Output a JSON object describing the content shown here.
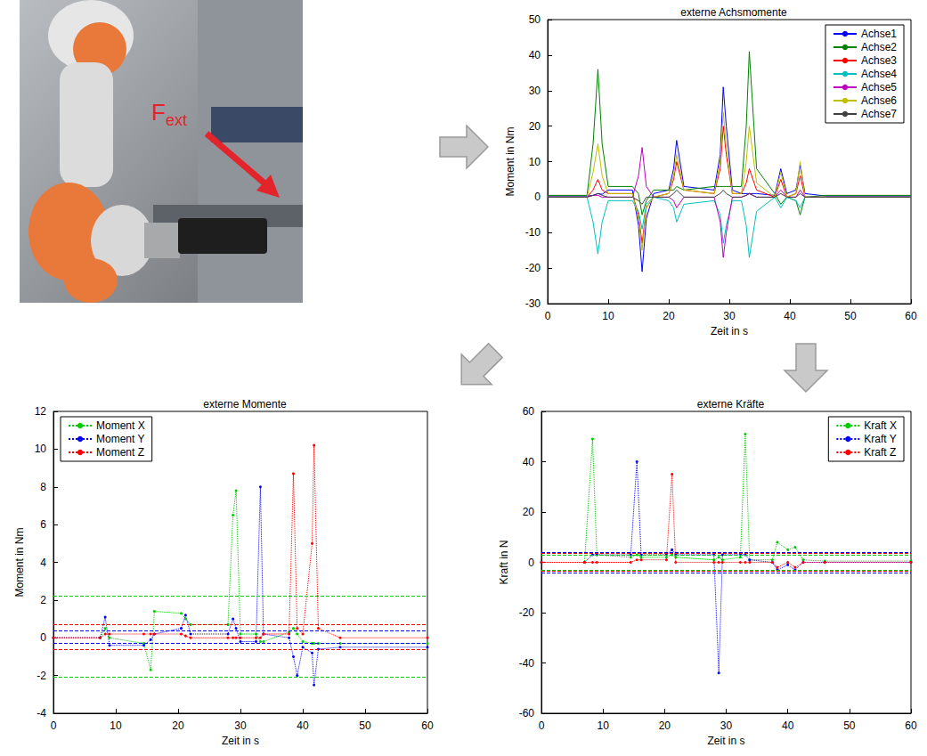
{
  "photo_label": {
    "text": "F",
    "subscript": "ext"
  },
  "chart_data": [
    {
      "type": "line",
      "title": "externe Achsmomente",
      "x_label": "Zeit in s",
      "y_label": "Moment in Nm",
      "xlim": [
        0,
        60
      ],
      "xticks": [
        0,
        10,
        20,
        30,
        40,
        50,
        60
      ],
      "ylim": [
        -30,
        50
      ],
      "yticks": [
        -30,
        -20,
        -10,
        0,
        10,
        20,
        30,
        40,
        50
      ],
      "grid": false,
      "legend": "upper right",
      "x": [
        0,
        6.5,
        7.5,
        8.3,
        9,
        10,
        14,
        15,
        15.6,
        16.3,
        17.5,
        20,
        20.8,
        21.3,
        22.5,
        27.5,
        28.5,
        29,
        29.5,
        30.5,
        32,
        32.8,
        33.3,
        34.5,
        37.5,
        38.5,
        39.5,
        41,
        41.7,
        42.5,
        46,
        60
      ],
      "series": [
        {
          "name": "Achse1",
          "color": "#0000ff",
          "line_style": "solid",
          "marker": "none",
          "values": [
            0.3,
            0.3,
            0.5,
            1,
            0.8,
            2,
            2,
            -8,
            -21,
            -6,
            1,
            2,
            8,
            16,
            3,
            2,
            12,
            31,
            20,
            2,
            1,
            1,
            1,
            1,
            0.5,
            8,
            1,
            2,
            9,
            1,
            0.3,
            0.3
          ]
        },
        {
          "name": "Achse2",
          "color": "#008000",
          "line_style": "solid",
          "marker": "none",
          "values": [
            0.5,
            0.5,
            15,
            36,
            15,
            3,
            3,
            1,
            -5,
            -1,
            2,
            2,
            2,
            3,
            2,
            3,
            3,
            3,
            3,
            3,
            3,
            20,
            41,
            8,
            1,
            -2,
            0,
            -1,
            -5,
            0,
            0.5,
            0.5
          ]
        },
        {
          "name": "Achse3",
          "color": "#ff0000",
          "line_style": "solid",
          "marker": "none",
          "values": [
            0,
            0,
            2,
            5,
            2,
            1,
            1,
            -5,
            -13,
            -3,
            0,
            1,
            5,
            10,
            2,
            1,
            8,
            20,
            12,
            1,
            1,
            4,
            8,
            2,
            0,
            5,
            0,
            1,
            6,
            0,
            0,
            0
          ]
        },
        {
          "name": "Achse4",
          "color": "#00bfbf",
          "line_style": "solid",
          "marker": "none",
          "values": [
            0,
            0,
            -7,
            -16,
            -7,
            -1,
            -1,
            -4,
            -9,
            -2,
            0,
            -1,
            -3,
            -7,
            -2,
            -1,
            -5,
            -13,
            -8,
            -1,
            -1,
            -8,
            -17,
            -4,
            0,
            -3,
            0,
            -1,
            -3,
            0,
            0,
            0
          ]
        },
        {
          "name": "Achse5",
          "color": "#bf00bf",
          "line_style": "solid",
          "marker": "none",
          "values": [
            0,
            0,
            0.5,
            0.5,
            0,
            0,
            0,
            6,
            14,
            3,
            0,
            0,
            -1,
            -3,
            0,
            0,
            -7,
            -17,
            -10,
            0,
            0,
            0.5,
            1,
            0,
            0,
            2,
            0,
            0,
            2,
            0,
            0,
            0
          ]
        },
        {
          "name": "Achse6",
          "color": "#bfbf00",
          "line_style": "solid",
          "marker": "none",
          "values": [
            0,
            0,
            7,
            15,
            6,
            1,
            1,
            -6,
            -15,
            -3,
            0,
            1,
            6,
            12,
            2,
            1,
            10,
            24,
            14,
            1,
            1,
            10,
            20,
            4,
            0,
            7,
            0,
            1,
            10,
            0,
            0,
            0
          ]
        },
        {
          "name": "Achse7",
          "color": "#404040",
          "line_style": "solid",
          "marker": "none",
          "values": [
            0,
            0,
            0.5,
            1,
            0.5,
            0,
            0,
            -1,
            -2,
            0,
            0,
            0,
            1,
            2,
            0,
            0,
            1,
            2,
            1,
            0,
            0,
            0.5,
            1,
            0,
            0,
            1,
            0,
            0,
            1,
            0,
            0,
            0
          ]
        }
      ]
    },
    {
      "type": "line",
      "title": "externe Momente",
      "x_label": "Zeit in s",
      "y_label": "Moment in Nm",
      "xlim": [
        0,
        60
      ],
      "xticks": [
        0,
        10,
        20,
        30,
        40,
        50,
        60
      ],
      "ylim": [
        -4,
        12
      ],
      "yticks": [
        -4,
        -2,
        0,
        2,
        4,
        6,
        8,
        10,
        12
      ],
      "grid": false,
      "legend": "upper left",
      "x": [
        0,
        7.5,
        8.3,
        9,
        14.5,
        15.6,
        16.2,
        20.5,
        21.2,
        22,
        28,
        28.8,
        29.3,
        30,
        32.5,
        33.2,
        33.7,
        37.8,
        38.5,
        39.1,
        40,
        41.5,
        41.8,
        42.5,
        46,
        60
      ],
      "series": [
        {
          "name": "Moment X",
          "color": "#00cc00",
          "line_style": "dotted",
          "marker": "dot",
          "thresholds": [
            2.2,
            -2.1
          ],
          "values": [
            0,
            0,
            0.5,
            0,
            -0.3,
            -1.7,
            1.4,
            1.3,
            1.0,
            0.7,
            0.7,
            6.5,
            7.8,
            0.2,
            0.2,
            -0.2,
            -0.2,
            0.3,
            0.5,
            0.2,
            -0.2,
            -0.3,
            -0.3,
            -0.3,
            -0.3,
            -0.3
          ]
        },
        {
          "name": "Moment Y",
          "color": "#0000ff",
          "line_style": "dotted",
          "marker": "dot",
          "thresholds": [
            0.4,
            -0.3
          ],
          "values": [
            0,
            0,
            1.1,
            -0.4,
            -0.4,
            -0.1,
            0.2,
            0.5,
            1.2,
            0.2,
            0.2,
            1.0,
            0.5,
            -0.2,
            -0.2,
            8.0,
            0.2,
            0,
            -1.0,
            -2.0,
            -0.5,
            -0.8,
            -2.5,
            -0.6,
            -0.5,
            -0.5
          ]
        },
        {
          "name": "Moment Z",
          "color": "#ff0000",
          "line_style": "dotted",
          "marker": "dot",
          "thresholds": [
            0.7,
            -0.6
          ],
          "values": [
            0,
            0,
            0.2,
            0.2,
            0.2,
            0.2,
            0.2,
            0.2,
            0.1,
            0,
            0,
            0,
            0,
            0,
            0,
            0,
            0.2,
            0.2,
            8.7,
            0.5,
            0.2,
            5,
            10.2,
            0.5,
            0,
            0
          ]
        }
      ]
    },
    {
      "type": "line",
      "title": "externe Kräfte",
      "x_label": "Zeit in s",
      "y_label": "Kraft in N",
      "xlim": [
        0,
        60
      ],
      "xticks": [
        0,
        10,
        20,
        30,
        40,
        50,
        60
      ],
      "ylim": [
        -60,
        60
      ],
      "yticks": [
        -60,
        -40,
        -20,
        0,
        20,
        40,
        60
      ],
      "grid": false,
      "legend": "upper right",
      "x": [
        0,
        7,
        8.3,
        9,
        14.5,
        15.5,
        16.2,
        20.3,
        21.2,
        21.8,
        28,
        28.8,
        29.4,
        32.3,
        33.1,
        33.8,
        37.5,
        38.3,
        40,
        41.2,
        42.5,
        46,
        60
      ],
      "series": [
        {
          "name": "Kraft X",
          "color": "#00cc00",
          "line_style": "dotted",
          "marker": "dot",
          "thresholds": [
            3,
            -3
          ],
          "values": [
            0,
            0,
            49,
            3,
            2,
            3,
            2,
            2,
            3,
            2,
            1,
            2,
            1,
            2,
            51,
            1,
            1,
            8,
            5,
            6,
            1,
            0.5,
            0.5
          ]
        },
        {
          "name": "Kraft Y",
          "color": "#0000ff",
          "line_style": "dotted",
          "marker": "dot",
          "thresholds": [
            4,
            -4
          ],
          "values": [
            0,
            0,
            3,
            3,
            3,
            40,
            3,
            3,
            5,
            3,
            3,
            -44,
            3,
            3,
            3,
            1,
            0,
            -3,
            -1,
            -3,
            0,
            0,
            0
          ]
        },
        {
          "name": "Kraft Z",
          "color": "#ff0000",
          "line_style": "dotted",
          "marker": "dot",
          "thresholds": [
            3.5,
            -3.5
          ],
          "values": [
            0,
            0,
            0,
            0,
            0,
            1,
            1,
            1,
            35,
            0,
            0,
            0,
            0,
            0,
            0,
            0,
            0,
            -2,
            0,
            -2,
            0,
            0,
            0
          ]
        }
      ]
    }
  ]
}
